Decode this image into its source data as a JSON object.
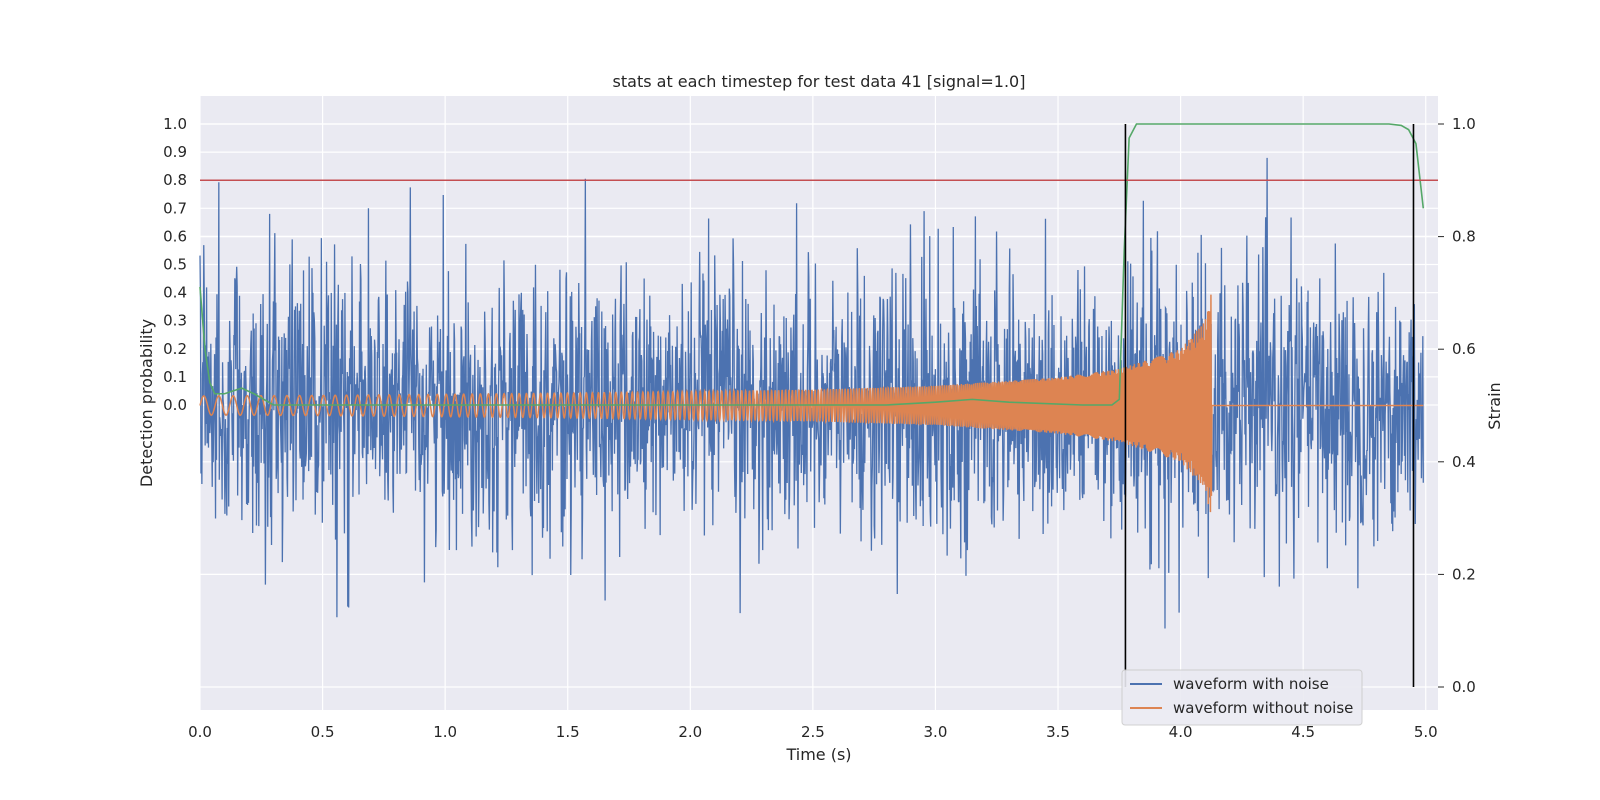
{
  "chart_data": {
    "type": "line",
    "title": "stats at each timestep for test data 41 [signal=1.0]",
    "xlabel": "Time (s)",
    "ylabel_left": "Detection probability",
    "ylabel_right": "Strain",
    "xlim": [
      0.0,
      5.05
    ],
    "x_ticks": [
      "0.0",
      "0.5",
      "1.0",
      "1.5",
      "2.0",
      "2.5",
      "3.0",
      "3.5",
      "4.0",
      "4.5",
      "5.0"
    ],
    "y_left_ticks": [
      "0.0",
      "0.1",
      "0.2",
      "0.3",
      "0.4",
      "0.5",
      "0.6",
      "0.7",
      "0.8",
      "0.9",
      "1.0"
    ],
    "y_right_ticks": [
      "0.0",
      "0.2",
      "0.4",
      "0.6",
      "0.8",
      "1.0"
    ],
    "grid": true,
    "legend_position": "lower-right",
    "threshold": {
      "value": 0.8,
      "axis": "left",
      "color": "#c44e52"
    },
    "vertical_markers": [
      3.775,
      4.95
    ],
    "series": [
      {
        "name": "waveform with noise",
        "axis": "right",
        "color": "#4c72b0",
        "description_points": {
          "x": [
            0.0,
            0.5,
            1.0,
            1.5,
            2.0,
            2.5,
            3.0,
            3.5,
            4.0,
            4.5,
            5.0
          ],
          "center": [
            0.5,
            0.5,
            0.5,
            0.5,
            0.5,
            0.5,
            0.5,
            0.5,
            0.5,
            0.5,
            0.5
          ],
          "typical_min": [
            0.25,
            0.2,
            0.2,
            0.18,
            0.2,
            0.2,
            0.2,
            0.2,
            0.15,
            0.2,
            0.22
          ],
          "typical_max": [
            0.75,
            0.8,
            0.82,
            0.85,
            0.85,
            0.85,
            0.85,
            0.88,
            0.9,
            0.85,
            0.8
          ]
        }
      },
      {
        "name": "waveform without noise",
        "axis": "right",
        "color": "#dd8452",
        "envelope": {
          "x": [
            0.0,
            0.5,
            1.0,
            1.5,
            2.0,
            2.5,
            3.0,
            3.5,
            3.75,
            4.0,
            4.1,
            4.125,
            4.13,
            5.0
          ],
          "amplitude": [
            0.017,
            0.018,
            0.02,
            0.022,
            0.025,
            0.028,
            0.035,
            0.05,
            0.065,
            0.1,
            0.15,
            0.2,
            0.0,
            0.0
          ]
        }
      },
      {
        "name": "detection probability",
        "axis": "left",
        "color": "#55a868",
        "x": [
          0.0,
          0.02,
          0.04,
          0.06,
          0.1,
          0.17,
          0.22,
          0.3,
          0.5,
          1.0,
          2.0,
          2.8,
          3.0,
          3.15,
          3.3,
          3.6,
          3.72,
          3.75,
          3.77,
          3.79,
          3.82,
          4.0,
          4.5,
          4.85,
          4.9,
          4.93,
          4.96,
          4.99
        ],
        "values": [
          0.42,
          0.2,
          0.08,
          0.04,
          0.04,
          0.06,
          0.04,
          0.0,
          0.0,
          0.0,
          0.0,
          0.0,
          0.01,
          0.02,
          0.01,
          0.0,
          0.0,
          0.02,
          0.55,
          0.95,
          1.0,
          1.0,
          1.0,
          1.0,
          0.995,
          0.98,
          0.93,
          0.7
        ]
      }
    ]
  }
}
